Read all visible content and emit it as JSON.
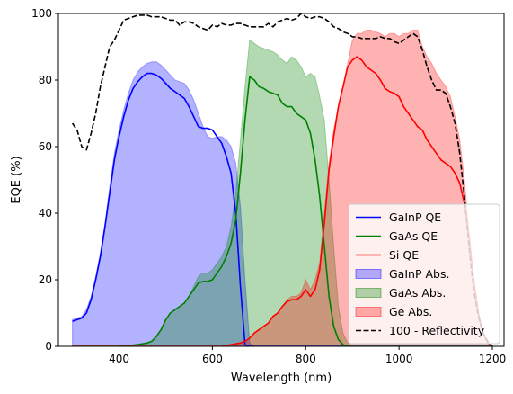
{
  "chart_data": {
    "type": "line",
    "title": "",
    "xlabel": "Wavelength (nm)",
    "ylabel": "EQE (%)",
    "xlim": [
      270,
      1225
    ],
    "ylim": [
      0,
      100
    ],
    "xticks": [
      400,
      600,
      800,
      1000,
      1200
    ],
    "yticks": [
      0,
      20,
      40,
      60,
      80,
      100
    ],
    "grid": false,
    "legend_position": "lower-right",
    "series": [
      {
        "name": "GaInP Abs.",
        "kind": "area",
        "color": "#0000ff",
        "x": [
          300,
          310,
          320,
          330,
          340,
          350,
          360,
          370,
          380,
          390,
          400,
          410,
          420,
          430,
          440,
          450,
          460,
          470,
          480,
          490,
          500,
          510,
          520,
          530,
          540,
          550,
          560,
          570,
          580,
          590,
          600,
          610,
          620,
          630,
          640,
          650,
          660,
          670,
          680,
          690
        ],
        "y": [
          8,
          8.5,
          9,
          11,
          15,
          21,
          28,
          37,
          48,
          58,
          65,
          71,
          76,
          80,
          82.5,
          84,
          85,
          85.5,
          85.5,
          84.5,
          83,
          81.5,
          80,
          79.5,
          79,
          77,
          74,
          70,
          66,
          63,
          62.5,
          63,
          63,
          62,
          60,
          55,
          42,
          20,
          1,
          0
        ]
      },
      {
        "name": "GaAs Abs.",
        "kind": "area",
        "color": "#008000",
        "x": [
          300,
          400,
          420,
          440,
          460,
          470,
          480,
          490,
          500,
          510,
          520,
          530,
          540,
          550,
          560,
          570,
          580,
          590,
          600,
          610,
          620,
          630,
          640,
          650,
          660,
          670,
          680,
          690,
          700,
          710,
          720,
          730,
          740,
          750,
          760,
          770,
          780,
          790,
          800,
          810,
          820,
          830,
          840,
          850,
          860,
          870,
          880,
          890,
          900
        ],
        "y": [
          0,
          0,
          0.2,
          0.5,
          1,
          1.5,
          3,
          5,
          8,
          10,
          11,
          12,
          13,
          15,
          18,
          21,
          22,
          22,
          23,
          25,
          27,
          30,
          36,
          46,
          62,
          78,
          92,
          91,
          90,
          89.5,
          89,
          88.5,
          87.5,
          86,
          85,
          87,
          86,
          84,
          81,
          82,
          81,
          75,
          68,
          50,
          30,
          12,
          4,
          1,
          0
        ]
      },
      {
        "name": "Ge Abs.",
        "kind": "area",
        "color": "#ff0000",
        "x": [
          300,
          620,
          640,
          660,
          670,
          680,
          690,
          700,
          710,
          720,
          730,
          740,
          750,
          760,
          770,
          780,
          790,
          800,
          810,
          820,
          830,
          840,
          850,
          860,
          870,
          880,
          890,
          900,
          910,
          920,
          930,
          940,
          950,
          960,
          970,
          980,
          990,
          1000,
          1010,
          1020,
          1030,
          1040,
          1050,
          1060,
          1070,
          1080,
          1090,
          1100,
          1110,
          1120,
          1130,
          1140,
          1150,
          1160,
          1170,
          1180,
          1190,
          1200
        ],
        "y": [
          0,
          0,
          0.5,
          1,
          1.5,
          2.5,
          4,
          5,
          6,
          7,
          9,
          10,
          12,
          14,
          15,
          15,
          16,
          20,
          17,
          20,
          25,
          40,
          55,
          65,
          72,
          78,
          85,
          92,
          94,
          94,
          95,
          95,
          94.5,
          94,
          93,
          94,
          94,
          93,
          94,
          94,
          95,
          95,
          90,
          87,
          85,
          82,
          80,
          78,
          75,
          69,
          62,
          50,
          35,
          20,
          10,
          4,
          1,
          0
        ]
      },
      {
        "name": "GaInP QE",
        "kind": "line",
        "color": "#0000ff",
        "dash": false,
        "x": [
          300,
          310,
          320,
          330,
          340,
          350,
          360,
          370,
          380,
          390,
          400,
          410,
          420,
          430,
          440,
          450,
          460,
          470,
          480,
          490,
          500,
          510,
          520,
          530,
          540,
          550,
          560,
          570,
          580,
          590,
          600,
          610,
          620,
          630,
          640,
          650,
          660,
          670,
          680,
          690,
          700,
          720,
          750,
          800,
          900,
          1000,
          1100,
          1200
        ],
        "y": [
          7.5,
          8,
          8.5,
          10,
          14,
          20,
          27,
          36,
          46,
          56,
          63,
          69,
          74,
          77.5,
          79.5,
          81,
          82,
          82,
          81.5,
          80.5,
          79,
          77.5,
          76.5,
          75.5,
          74.5,
          72,
          69,
          66,
          65.5,
          65.5,
          65,
          63,
          61,
          57,
          52,
          40,
          18,
          0.5,
          0,
          0,
          0,
          0,
          0,
          0,
          0,
          0,
          0,
          0
        ]
      },
      {
        "name": "GaAs QE",
        "kind": "line",
        "color": "#008000",
        "dash": false,
        "x": [
          300,
          400,
          420,
          440,
          460,
          470,
          480,
          490,
          500,
          510,
          520,
          530,
          540,
          550,
          560,
          570,
          580,
          590,
          600,
          610,
          620,
          630,
          640,
          650,
          660,
          670,
          680,
          690,
          700,
          710,
          720,
          730,
          740,
          750,
          760,
          770,
          780,
          790,
          800,
          810,
          820,
          830,
          840,
          850,
          860,
          870,
          880,
          890,
          900,
          950,
          1000,
          1100,
          1200
        ],
        "y": [
          0,
          0,
          0.2,
          0.5,
          1,
          1.5,
          3,
          5,
          8,
          10,
          11,
          12,
          13,
          15,
          17,
          19,
          19.5,
          19.5,
          20,
          22,
          24,
          27,
          31,
          38,
          52,
          68,
          81,
          80,
          78,
          77.5,
          76.5,
          76,
          75.5,
          73,
          72,
          72,
          70,
          69,
          68,
          64,
          56,
          45,
          30,
          15,
          6,
          2,
          0.5,
          0,
          0,
          0,
          0,
          0,
          0
        ]
      },
      {
        "name": "Si QE",
        "kind": "line",
        "color": "#ff0000",
        "dash": false,
        "x": [
          300,
          620,
          640,
          660,
          670,
          680,
          690,
          700,
          710,
          720,
          730,
          740,
          750,
          760,
          770,
          780,
          790,
          800,
          810,
          820,
          830,
          840,
          850,
          860,
          870,
          880,
          890,
          900,
          910,
          920,
          930,
          940,
          950,
          960,
          970,
          980,
          990,
          1000,
          1010,
          1020,
          1030,
          1040,
          1050,
          1060,
          1070,
          1080,
          1090,
          1100,
          1110,
          1120,
          1130,
          1140,
          1150,
          1160,
          1170,
          1180,
          1190,
          1200
        ],
        "y": [
          0,
          0,
          0.5,
          1,
          1.5,
          2.5,
          4,
          5,
          6,
          7,
          9,
          10,
          12,
          13.5,
          14,
          14,
          15,
          17,
          15,
          17,
          23,
          37,
          53,
          63,
          72,
          78,
          84,
          86,
          87,
          86,
          84,
          83,
          82,
          80,
          77.5,
          76.5,
          76,
          75,
          72,
          70,
          68,
          66,
          65,
          62,
          60,
          58,
          56,
          55,
          54,
          52,
          49,
          43,
          33,
          20,
          10,
          4,
          1,
          0
        ]
      },
      {
        "name": "100 - Reflectivity",
        "kind": "line",
        "color": "#000000",
        "dash": true,
        "x": [
          300,
          310,
          320,
          330,
          340,
          350,
          360,
          370,
          380,
          390,
          400,
          410,
          420,
          430,
          440,
          450,
          460,
          470,
          480,
          490,
          500,
          510,
          520,
          530,
          540,
          550,
          560,
          570,
          580,
          590,
          600,
          610,
          620,
          630,
          640,
          650,
          660,
          670,
          680,
          690,
          700,
          710,
          720,
          730,
          740,
          750,
          760,
          770,
          780,
          790,
          800,
          810,
          820,
          830,
          840,
          850,
          860,
          870,
          880,
          890,
          900,
          910,
          920,
          930,
          940,
          950,
          960,
          970,
          980,
          990,
          1000,
          1010,
          1020,
          1030,
          1040,
          1050,
          1060,
          1070,
          1080,
          1090,
          1100,
          1110,
          1120,
          1130,
          1140,
          1150,
          1160,
          1170,
          1180,
          1190,
          1200
        ],
        "y": [
          67,
          65,
          60,
          59,
          64,
          70,
          78,
          84,
          90,
          92,
          95,
          98,
          98.5,
          99,
          99.5,
          99.5,
          99.5,
          99,
          99,
          99,
          98.5,
          98,
          98,
          96.5,
          97.5,
          97.5,
          97,
          96,
          95.5,
          95,
          96.5,
          96,
          97,
          96.5,
          96.5,
          97,
          97,
          96.5,
          96,
          96,
          96,
          96,
          97,
          96,
          97.5,
          98,
          98.5,
          98,
          98.5,
          100,
          99,
          98.5,
          99,
          99,
          98.5,
          97.5,
          96,
          95.5,
          94.5,
          94,
          93,
          93,
          92.5,
          92.5,
          92.5,
          92.5,
          93,
          92.5,
          92.5,
          91.5,
          91,
          92,
          93,
          94,
          93,
          89,
          84,
          80,
          77,
          77,
          76,
          72,
          67,
          58,
          45,
          30,
          17,
          9,
          4,
          1.5,
          0
        ]
      }
    ]
  }
}
